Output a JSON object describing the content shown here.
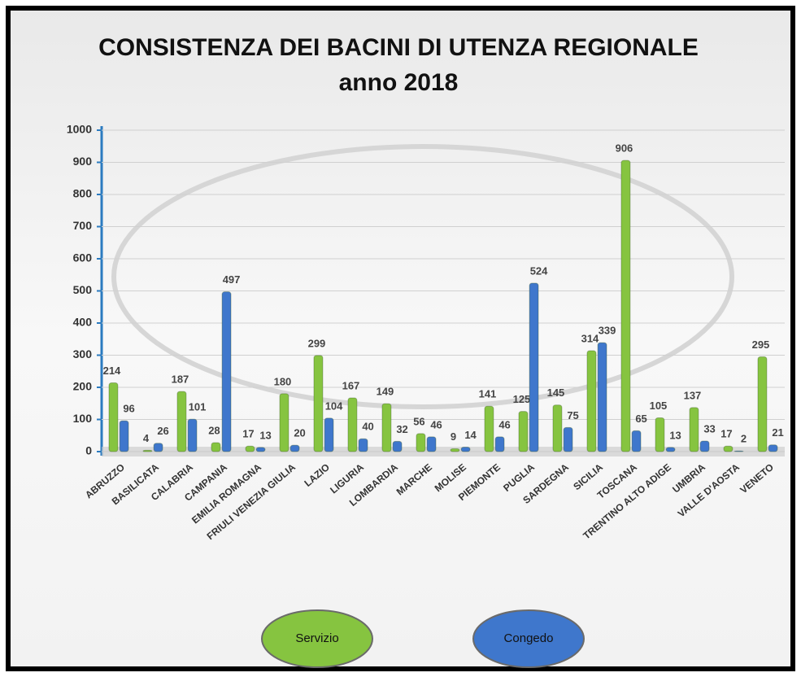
{
  "chart_data": {
    "type": "bar",
    "title": "CONSISTENZA DEI BACINI DI UTENZA REGIONALE",
    "subtitle": "anno 2018",
    "categories": [
      "ABRUZZO",
      "BASILICATA",
      "CALABRIA",
      "CAMPANIA",
      "EMILIA ROMAGNA",
      "FRIULI VENEZIA GIULIA",
      "LAZIO",
      "LIGURIA",
      "LOMBARDIA",
      "MARCHE",
      "MOLISE",
      "PIEMONTE",
      "PUGLIA",
      "SARDEGNA",
      "SICILIA",
      "TOSCANA",
      "TRENTINO ALTO ADIGE",
      "UMBRIA",
      "VALLE D'AOSTA",
      "VENETO"
    ],
    "series": [
      {
        "name": "Servizio",
        "color": "#86c440",
        "values": [
          214,
          4,
          187,
          28,
          17,
          180,
          299,
          167,
          149,
          56,
          9,
          141,
          125,
          145,
          314,
          906,
          105,
          137,
          17,
          295
        ]
      },
      {
        "name": "Congedo",
        "color": "#3f77cc",
        "values": [
          96,
          26,
          101,
          497,
          13,
          20,
          104,
          40,
          32,
          46,
          14,
          46,
          524,
          75,
          339,
          65,
          13,
          33,
          2,
          21
        ]
      }
    ],
    "ylim": [
      0,
      1000
    ],
    "yticks": [
      0,
      100,
      200,
      300,
      400,
      500,
      600,
      700,
      800,
      900,
      1000
    ],
    "grid": true,
    "legend": "bottom"
  }
}
